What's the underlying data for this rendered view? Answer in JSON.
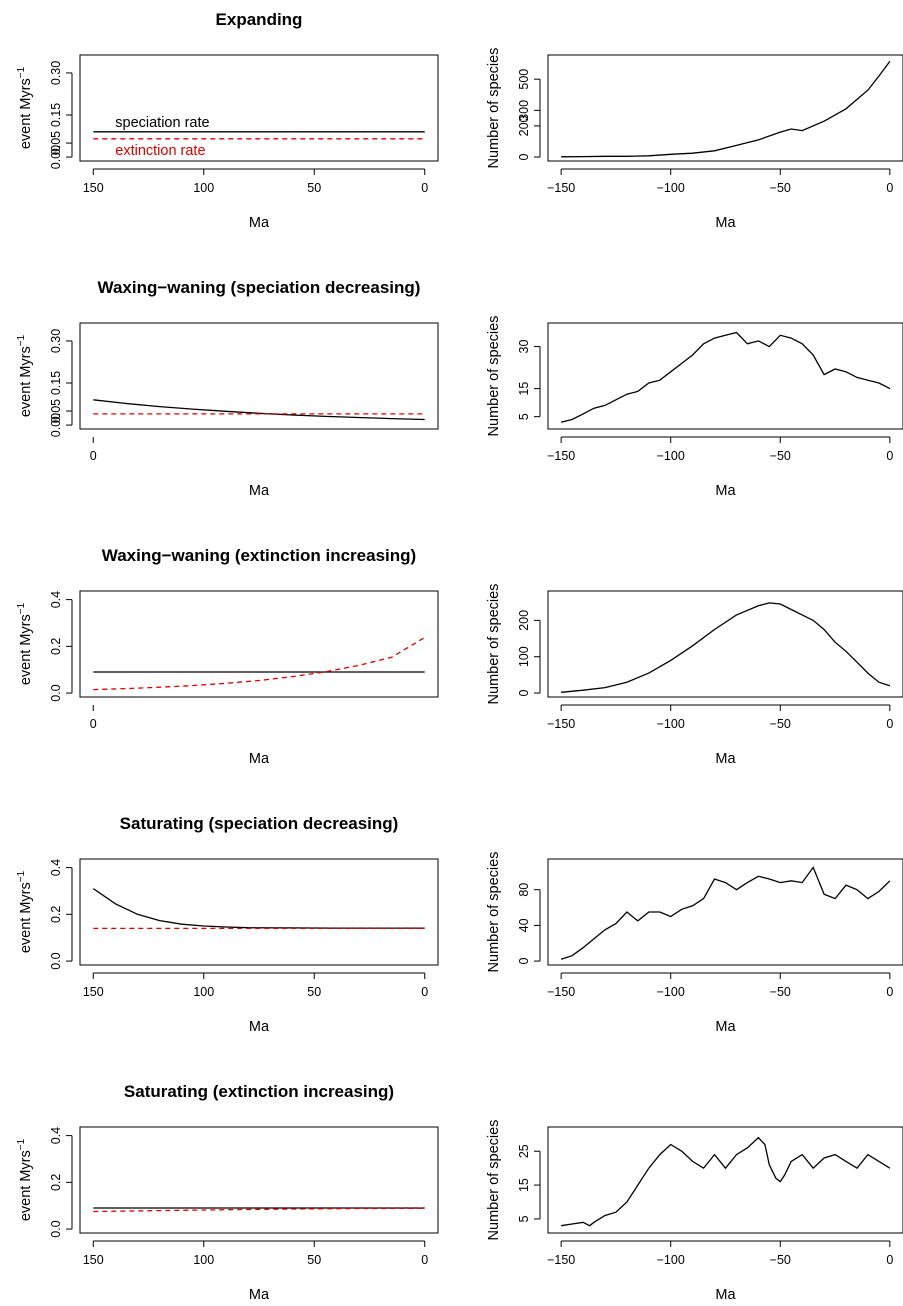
{
  "chart_data": [
    {
      "type": "line",
      "title": "Expanding",
      "xlabel": "Ma",
      "ylabel": "event Myrs",
      "ylabel_superscript": "−1",
      "x_reversed": true,
      "xlim": [
        150,
        0
      ],
      "ylim": [
        0,
        0.35
      ],
      "xticks": [
        150,
        100,
        50,
        0
      ],
      "yticks": [
        0.0,
        0.05,
        0.15,
        0.3
      ],
      "ytick_labels": [
        "0.00",
        "0.05",
        "0.15",
        "0.30"
      ],
      "series": [
        {
          "name": "speciation rate",
          "color": "#000000",
          "dash": "solid",
          "x": [
            150,
            0
          ],
          "y": [
            0.09,
            0.09
          ]
        },
        {
          "name": "extinction rate",
          "color": "#dd0000",
          "dash": "dashed",
          "x": [
            150,
            0
          ],
          "y": [
            0.065,
            0.065
          ]
        }
      ]
    },
    {
      "type": "line",
      "title": "",
      "xlabel": "Ma",
      "ylabel": "Number of species",
      "xlim": [
        -150,
        0
      ],
      "ylim": [
        0,
        630
      ],
      "xticks": [
        -150,
        -100,
        -50,
        0
      ],
      "xtick_labels": [
        "−150",
        "−100",
        "−50",
        "0"
      ],
      "yticks": [
        0,
        200,
        300,
        500
      ],
      "series": [
        {
          "color": "#000000",
          "x": [
            -150,
            -140,
            -130,
            -120,
            -110,
            -100,
            -90,
            -80,
            -70,
            -60,
            -50,
            -45,
            -40,
            -30,
            -20,
            -10,
            -5,
            0
          ],
          "y": [
            2,
            3,
            5,
            5,
            8,
            18,
            25,
            40,
            75,
            110,
            160,
            180,
            170,
            230,
            310,
            430,
            520,
            615
          ]
        }
      ]
    },
    {
      "type": "line",
      "title": "Waxing−waning (speciation decreasing)",
      "xlabel": "Ma",
      "ylabel": "event Myrs",
      "ylabel_superscript": "−1",
      "xlim": [
        0,
        150
      ],
      "ylim": [
        0,
        0.35
      ],
      "xticks": [
        0
      ],
      "yticks": [
        0.0,
        0.05,
        0.15,
        0.3
      ],
      "ytick_labels": [
        "0.00",
        "0.05",
        "0.15",
        "0.30"
      ],
      "series": [
        {
          "color": "#000000",
          "dash": "solid",
          "x": [
            0,
            15,
            30,
            45,
            60,
            75,
            90,
            105,
            120,
            135,
            150
          ],
          "y": [
            0.09,
            0.077,
            0.066,
            0.057,
            0.049,
            0.042,
            0.036,
            0.031,
            0.027,
            0.023,
            0.02
          ]
        },
        {
          "color": "#dd0000",
          "dash": "dashed",
          "x": [
            0,
            150
          ],
          "y": [
            0.04,
            0.04
          ]
        }
      ]
    },
    {
      "type": "line",
      "title": "",
      "xlabel": "Ma",
      "ylabel": "Number of species",
      "xlim": [
        -150,
        0
      ],
      "ylim": [
        2,
        37
      ],
      "xticks": [
        -150,
        -100,
        -50,
        0
      ],
      "xtick_labels": [
        "−150",
        "−100",
        "−50",
        "0"
      ],
      "yticks": [
        5,
        15,
        30
      ],
      "series": [
        {
          "color": "#000000",
          "x": [
            -150,
            -145,
            -140,
            -135,
            -130,
            -125,
            -120,
            -115,
            -110,
            -105,
            -100,
            -95,
            -90,
            -85,
            -80,
            -75,
            -70,
            -65,
            -60,
            -55,
            -50,
            -45,
            -40,
            -35,
            -30,
            -25,
            -20,
            -15,
            -10,
            -5,
            0
          ],
          "y": [
            3,
            4,
            6,
            8,
            9,
            11,
            13,
            14,
            17,
            18,
            21,
            24,
            27,
            31,
            33,
            34,
            35,
            31,
            32,
            30,
            34,
            33,
            31,
            27,
            20,
            22,
            21,
            19,
            18,
            17,
            15
          ]
        }
      ]
    },
    {
      "type": "line",
      "title": "Waxing−waning (extinction increasing)",
      "xlabel": "Ma",
      "ylabel": "event Myrs",
      "ylabel_superscript": "−1",
      "xlim": [
        0,
        150
      ],
      "ylim": [
        0,
        0.42
      ],
      "xticks": [
        0
      ],
      "yticks": [
        0.0,
        0.2,
        0.4
      ],
      "ytick_labels": [
        "0.0",
        "0.2",
        "0.4"
      ],
      "series": [
        {
          "color": "#000000",
          "dash": "solid",
          "x": [
            0,
            150
          ],
          "y": [
            0.09,
            0.09
          ]
        },
        {
          "color": "#dd0000",
          "dash": "dashed",
          "x": [
            0,
            15,
            30,
            45,
            60,
            75,
            90,
            105,
            120,
            135,
            150
          ],
          "y": [
            0.015,
            0.019,
            0.025,
            0.032,
            0.042,
            0.054,
            0.07,
            0.091,
            0.118,
            0.153,
            0.238
          ]
        }
      ]
    },
    {
      "type": "line",
      "title": "",
      "xlabel": "Ma",
      "ylabel": "Number of species",
      "xlim": [
        -150,
        0
      ],
      "ylim": [
        0,
        270
      ],
      "xticks": [
        -150,
        -100,
        -50,
        0
      ],
      "xtick_labels": [
        "−150",
        "−100",
        "−50",
        "0"
      ],
      "yticks": [
        0,
        100,
        200
      ],
      "series": [
        {
          "color": "#000000",
          "x": [
            -150,
            -140,
            -130,
            -120,
            -110,
            -100,
            -90,
            -80,
            -70,
            -60,
            -55,
            -50,
            -45,
            -40,
            -35,
            -30,
            -25,
            -20,
            -15,
            -10,
            -5,
            0
          ],
          "y": [
            2,
            8,
            15,
            30,
            55,
            90,
            130,
            175,
            215,
            240,
            248,
            245,
            230,
            215,
            200,
            175,
            140,
            115,
            85,
            55,
            30,
            20
          ]
        }
      ]
    },
    {
      "type": "line",
      "title": "Saturating (speciation decreasing)",
      "xlabel": "Ma",
      "ylabel": "event Myrs",
      "ylabel_superscript": "−1",
      "x_reversed": true,
      "xlim": [
        150,
        0
      ],
      "ylim": [
        0,
        0.42
      ],
      "xticks": [
        150,
        100,
        50,
        0
      ],
      "yticks": [
        0.0,
        0.2,
        0.4
      ],
      "ytick_labels": [
        "0.0",
        "0.2",
        "0.4"
      ],
      "series": [
        {
          "color": "#000000",
          "dash": "solid",
          "x": [
            150,
            140,
            130,
            120,
            110,
            100,
            90,
            80,
            60,
            40,
            20,
            0
          ],
          "y": [
            0.31,
            0.245,
            0.2,
            0.173,
            0.158,
            0.15,
            0.146,
            0.143,
            0.142,
            0.141,
            0.141,
            0.141
          ]
        },
        {
          "color": "#dd0000",
          "dash": "dashed",
          "x": [
            150,
            0
          ],
          "y": [
            0.14,
            0.14
          ]
        }
      ]
    },
    {
      "type": "line",
      "title": "",
      "xlabel": "Ma",
      "ylabel": "Number of species",
      "xlim": [
        -150,
        0
      ],
      "ylim": [
        0,
        110
      ],
      "xticks": [
        -150,
        -100,
        -50,
        0
      ],
      "xtick_labels": [
        "−150",
        "−100",
        "−50",
        "0"
      ],
      "yticks": [
        0,
        40,
        80
      ],
      "series": [
        {
          "color": "#000000",
          "x": [
            -150,
            -145,
            -140,
            -135,
            -130,
            -125,
            -120,
            -115,
            -110,
            -105,
            -100,
            -95,
            -90,
            -85,
            -80,
            -75,
            -70,
            -65,
            -60,
            -55,
            -50,
            -45,
            -40,
            -35,
            -30,
            -25,
            -20,
            -15,
            -10,
            -5,
            0
          ],
          "y": [
            2,
            6,
            15,
            25,
            35,
            42,
            55,
            45,
            55,
            55,
            50,
            58,
            62,
            70,
            92,
            88,
            80,
            88,
            95,
            92,
            88,
            90,
            88,
            105,
            75,
            70,
            85,
            80,
            70,
            78,
            90
          ]
        }
      ]
    },
    {
      "type": "line",
      "title": "Saturating (extinction increasing)",
      "xlabel": "Ma",
      "ylabel": "event Myrs",
      "ylabel_superscript": "−1",
      "x_reversed": true,
      "xlim": [
        150,
        0
      ],
      "ylim": [
        0,
        0.42
      ],
      "xticks": [
        150,
        100,
        50,
        0
      ],
      "yticks": [
        0.0,
        0.2,
        0.4
      ],
      "ytick_labels": [
        "0.0",
        "0.2",
        "0.4"
      ],
      "series": [
        {
          "color": "#000000",
          "dash": "solid",
          "x": [
            150,
            0
          ],
          "y": [
            0.09,
            0.09
          ]
        },
        {
          "color": "#dd0000",
          "dash": "dashed",
          "x": [
            150,
            120,
            90,
            60,
            30,
            0
          ],
          "y": [
            0.075,
            0.079,
            0.083,
            0.086,
            0.088,
            0.089
          ]
        }
      ]
    },
    {
      "type": "line",
      "title": "",
      "xlabel": "Ma",
      "ylabel": "Number of species",
      "xlim": [
        -150,
        0
      ],
      "ylim": [
        2,
        31
      ],
      "xticks": [
        -150,
        -100,
        -50,
        0
      ],
      "xtick_labels": [
        "−150",
        "−100",
        "−50",
        "0"
      ],
      "yticks": [
        5,
        15,
        25
      ],
      "series": [
        {
          "color": "#000000",
          "x": [
            -150,
            -145,
            -140,
            -137,
            -135,
            -130,
            -125,
            -120,
            -115,
            -110,
            -105,
            -100,
            -95,
            -90,
            -85,
            -80,
            -75,
            -70,
            -65,
            -60,
            -57,
            -55,
            -52,
            -50,
            -48,
            -45,
            -40,
            -35,
            -30,
            -25,
            -20,
            -15,
            -10,
            -5,
            0
          ],
          "y": [
            3,
            3.5,
            4,
            3,
            4,
            6,
            7,
            10,
            15,
            20,
            24,
            27,
            25,
            22,
            20,
            24,
            20,
            24,
            26,
            29,
            27,
            21,
            17,
            16,
            18,
            22,
            24,
            20,
            23,
            24,
            22,
            20,
            24,
            22,
            20
          ]
        }
      ]
    }
  ]
}
